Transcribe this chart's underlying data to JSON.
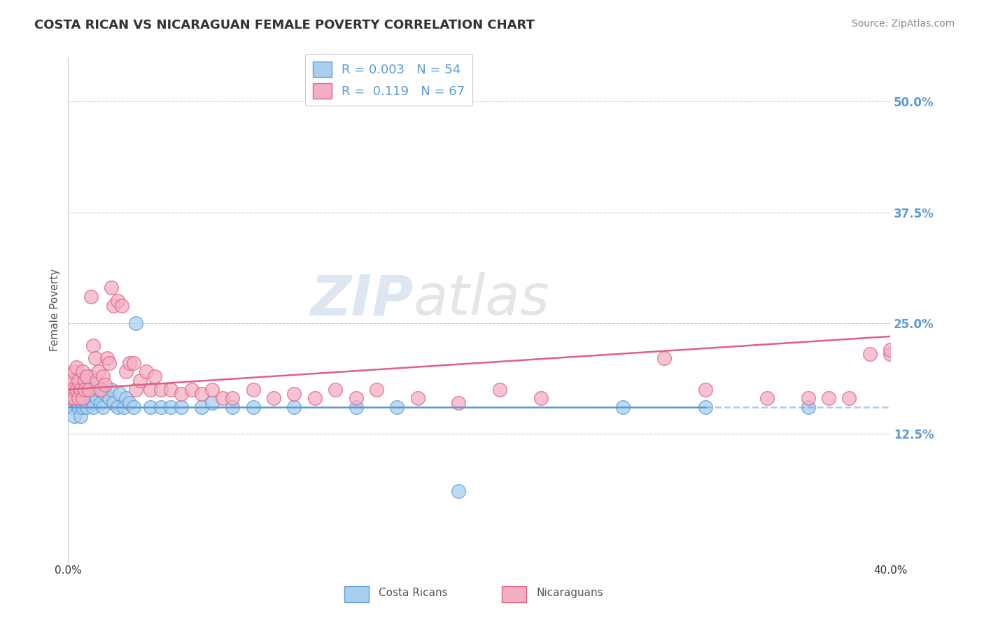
{
  "title": "COSTA RICAN VS NICARAGUAN FEMALE POVERTY CORRELATION CHART",
  "source": "Source: ZipAtlas.com",
  "ylabel": "Female Poverty",
  "yticks": [
    "12.5%",
    "25.0%",
    "37.5%",
    "50.0%"
  ],
  "ytick_vals": [
    0.125,
    0.25,
    0.375,
    0.5
  ],
  "xlim": [
    0.0,
    0.4
  ],
  "ylim": [
    -0.02,
    0.55
  ],
  "legend_labels": [
    "Costa Ricans",
    "Nicaraguans"
  ],
  "legend_R": [
    "0.003",
    "0.119"
  ],
  "legend_N": [
    "54",
    "67"
  ],
  "costa_rican_color": "#aacfee",
  "nicaraguan_color": "#f4afc5",
  "costa_rican_line_color": "#5b9bd5",
  "nicaraguan_line_color": "#e06080",
  "watermark_zip": "ZIP",
  "watermark_atlas": "atlas",
  "cr_x": [
    0.001,
    0.002,
    0.002,
    0.003,
    0.003,
    0.004,
    0.004,
    0.005,
    0.005,
    0.006,
    0.006,
    0.007,
    0.007,
    0.007,
    0.008,
    0.008,
    0.009,
    0.009,
    0.01,
    0.01,
    0.011,
    0.012,
    0.012,
    0.013,
    0.014,
    0.015,
    0.016,
    0.017,
    0.018,
    0.02,
    0.021,
    0.022,
    0.024,
    0.025,
    0.027,
    0.028,
    0.03,
    0.032,
    0.033,
    0.04,
    0.045,
    0.05,
    0.055,
    0.065,
    0.07,
    0.08,
    0.09,
    0.11,
    0.14,
    0.16,
    0.19,
    0.27,
    0.31,
    0.36
  ],
  "cr_y": [
    0.16,
    0.155,
    0.175,
    0.145,
    0.17,
    0.16,
    0.185,
    0.17,
    0.155,
    0.165,
    0.145,
    0.175,
    0.16,
    0.155,
    0.17,
    0.175,
    0.165,
    0.155,
    0.165,
    0.175,
    0.19,
    0.16,
    0.155,
    0.17,
    0.165,
    0.175,
    0.16,
    0.155,
    0.17,
    0.165,
    0.175,
    0.16,
    0.155,
    0.17,
    0.155,
    0.165,
    0.16,
    0.155,
    0.25,
    0.155,
    0.155,
    0.155,
    0.155,
    0.155,
    0.16,
    0.155,
    0.155,
    0.155,
    0.155,
    0.155,
    0.06,
    0.155,
    0.155,
    0.155
  ],
  "nic_x": [
    0.001,
    0.001,
    0.002,
    0.002,
    0.003,
    0.003,
    0.004,
    0.004,
    0.005,
    0.005,
    0.006,
    0.007,
    0.007,
    0.008,
    0.008,
    0.009,
    0.01,
    0.011,
    0.012,
    0.013,
    0.014,
    0.015,
    0.016,
    0.017,
    0.018,
    0.019,
    0.02,
    0.021,
    0.022,
    0.024,
    0.026,
    0.028,
    0.03,
    0.032,
    0.033,
    0.035,
    0.038,
    0.04,
    0.042,
    0.045,
    0.05,
    0.055,
    0.06,
    0.065,
    0.07,
    0.075,
    0.08,
    0.09,
    0.1,
    0.11,
    0.12,
    0.13,
    0.14,
    0.15,
    0.17,
    0.19,
    0.21,
    0.23,
    0.29,
    0.31,
    0.34,
    0.36,
    0.37,
    0.38,
    0.39,
    0.4,
    0.4
  ],
  "nic_y": [
    0.165,
    0.18,
    0.185,
    0.175,
    0.195,
    0.165,
    0.2,
    0.175,
    0.185,
    0.165,
    0.175,
    0.195,
    0.165,
    0.185,
    0.175,
    0.19,
    0.175,
    0.28,
    0.225,
    0.21,
    0.185,
    0.195,
    0.175,
    0.19,
    0.18,
    0.21,
    0.205,
    0.29,
    0.27,
    0.275,
    0.27,
    0.195,
    0.205,
    0.205,
    0.175,
    0.185,
    0.195,
    0.175,
    0.19,
    0.175,
    0.175,
    0.17,
    0.175,
    0.17,
    0.175,
    0.165,
    0.165,
    0.175,
    0.165,
    0.17,
    0.165,
    0.175,
    0.165,
    0.175,
    0.165,
    0.16,
    0.175,
    0.165,
    0.21,
    0.175,
    0.165,
    0.165,
    0.165,
    0.165,
    0.215,
    0.215,
    0.22
  ]
}
